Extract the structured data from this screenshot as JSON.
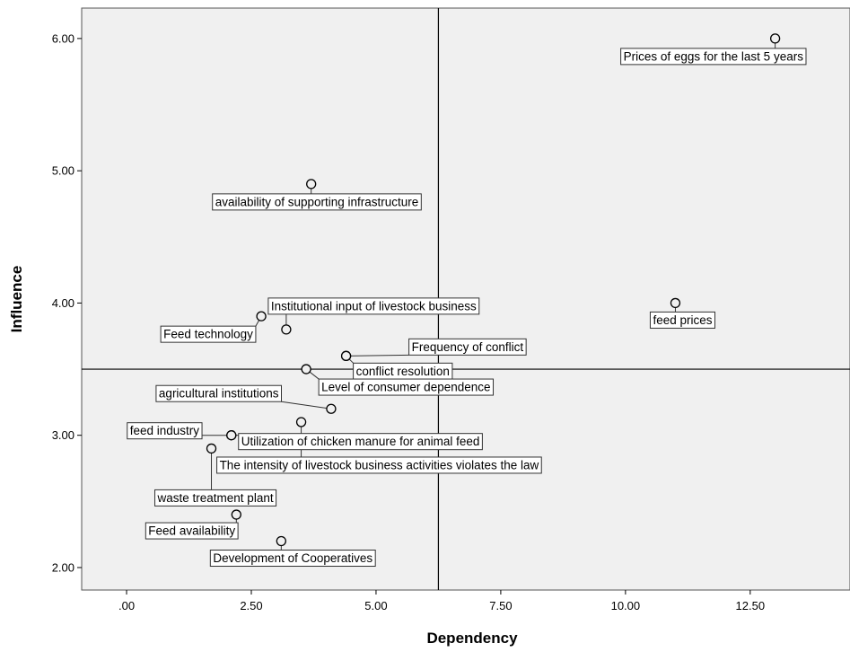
{
  "chart_data": {
    "type": "scatter",
    "xlabel": "Dependency",
    "ylabel": "Influence",
    "xlim": [
      -0.9,
      14.5
    ],
    "ylim": [
      1.83,
      6.23
    ],
    "x_ticks": [
      ".00",
      "2.50",
      "5.00",
      "7.50",
      "10.00",
      "12.50"
    ],
    "x_tick_values": [
      0,
      2.5,
      5,
      7.5,
      10,
      12.5
    ],
    "y_ticks": [
      "2.00",
      "3.00",
      "4.00",
      "5.00",
      "6.00"
    ],
    "y_tick_values": [
      2,
      3,
      4,
      5,
      6
    ],
    "reference_lines": {
      "x": 6.25,
      "y": 3.5
    },
    "grid": false,
    "plot_background": "#f0f0f0",
    "point_fill": "#f0f0f0",
    "points": [
      {
        "label": "Prices of eggs for the last 5 years",
        "x": 13,
        "y": 6
      },
      {
        "label": "availability of supporting infrastructure",
        "x": 3.7,
        "y": 4.9
      },
      {
        "label": "feed prices",
        "x": 11,
        "y": 4
      },
      {
        "label": "Feed technology",
        "x": 2.7,
        "y": 3.9
      },
      {
        "label": "Institutional input of livestock business",
        "x": 3.2,
        "y": 3.8
      },
      {
        "label": "Frequency of conflict",
        "x": 4.4,
        "y": 3.6
      },
      {
        "label": "conflict resolution",
        "x": 4.4,
        "y": 3.6
      },
      {
        "label": "Level of consumer dependence",
        "x": 3.6,
        "y": 3.5
      },
      {
        "label": "agricultural institutions",
        "x": 4.1,
        "y": 3.2
      },
      {
        "label": "The intensity of livestock business activities violates the law",
        "x": 3.5,
        "y": 3.1
      },
      {
        "label": "feed industry",
        "x": 2.1,
        "y": 3.0
      },
      {
        "label": "Utilization of chicken manure for animal feed",
        "x": 2.1,
        "y": 3.0
      },
      {
        "label": "waste treatment plant",
        "x": 1.7,
        "y": 2.9
      },
      {
        "label": "Feed availability",
        "x": 2.2,
        "y": 2.4
      },
      {
        "label": "Development of Cooperatives",
        "x": 3.1,
        "y": 2.2
      }
    ]
  }
}
